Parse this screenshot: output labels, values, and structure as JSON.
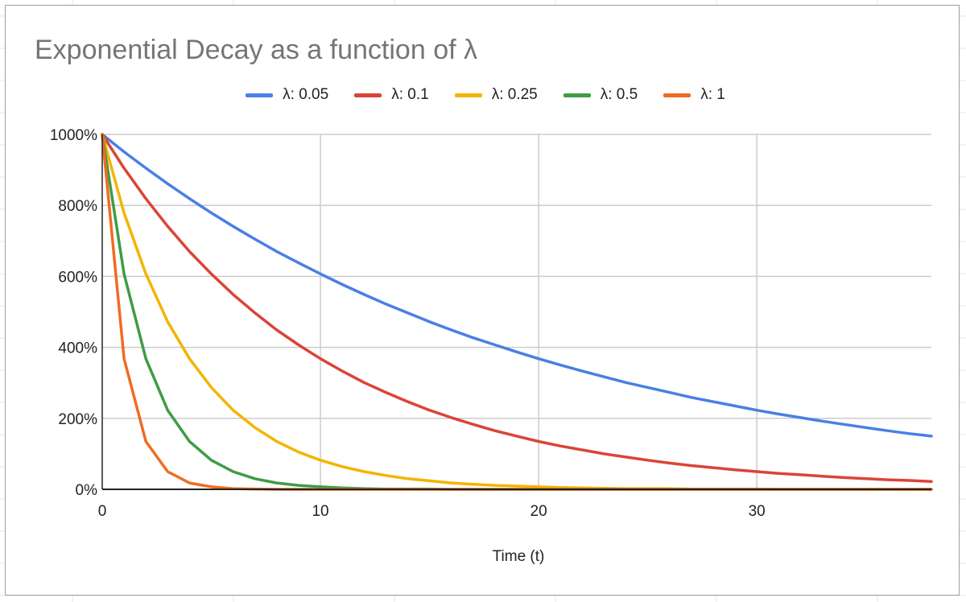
{
  "colors": {
    "gridline": "#cccccc",
    "axis": "#222222",
    "sheet_grid": "#e6e6e6",
    "title": "#757575"
  },
  "chart_data": {
    "type": "line",
    "title": "Exponential Decay as a function of λ",
    "xlabel": "Time (t)",
    "ylabel": "",
    "xlim": [
      0,
      38
    ],
    "ylim": [
      0,
      1000
    ],
    "x_ticks": [
      0,
      10,
      20,
      30
    ],
    "x_tick_labels": [
      "0",
      "10",
      "20",
      "30"
    ],
    "y_ticks": [
      0,
      200,
      400,
      600,
      800,
      1000
    ],
    "y_tick_labels": [
      "0%",
      "200%",
      "400%",
      "600%",
      "800%",
      "1000%"
    ],
    "legend_position": "top-center",
    "grid": true,
    "x": [
      0,
      1,
      2,
      3,
      4,
      5,
      6,
      7,
      8,
      9,
      10,
      11,
      12,
      13,
      14,
      15,
      16,
      17,
      18,
      19,
      20,
      21,
      22,
      23,
      24,
      25,
      26,
      27,
      28,
      29,
      30,
      31,
      32,
      33,
      34,
      35,
      36,
      37,
      38
    ],
    "series": [
      {
        "name": "λ: 0.05",
        "color": "#4a7fe5",
        "values": [
          1000,
          951,
          905,
          861,
          819,
          779,
          741,
          705,
          670,
          638,
          607,
          577,
          549,
          522,
          497,
          472,
          449,
          427,
          407,
          387,
          368,
          350,
          333,
          317,
          301,
          287,
          273,
          259,
          247,
          235,
          223,
          212,
          202,
          192,
          183,
          174,
          165,
          157,
          150
        ]
      },
      {
        "name": "λ: 0.1",
        "color": "#db4437",
        "values": [
          1000,
          905,
          819,
          741,
          670,
          607,
          549,
          497,
          449,
          407,
          368,
          333,
          301,
          273,
          247,
          223,
          202,
          183,
          165,
          150,
          135,
          122,
          111,
          100,
          91,
          82,
          74,
          67,
          61,
          55,
          50,
          45,
          41,
          37,
          33,
          30,
          27,
          25,
          22
        ]
      },
      {
        "name": "λ: 0.25",
        "color": "#f4b400",
        "values": [
          1000,
          779,
          607,
          472,
          368,
          287,
          223,
          174,
          135,
          105,
          82,
          64,
          50,
          39,
          30,
          24,
          18,
          14,
          11,
          9,
          7,
          5,
          4,
          3,
          2,
          2,
          2,
          1,
          1,
          1,
          1,
          0,
          0,
          0,
          0,
          0,
          0,
          0,
          0
        ]
      },
      {
        "name": "λ: 0.5",
        "color": "#3f9c46",
        "values": [
          1000,
          607,
          368,
          223,
          135,
          82,
          50,
          30,
          18,
          11,
          7,
          4,
          2,
          1,
          1,
          1,
          0,
          0,
          0,
          0,
          0,
          0,
          0,
          0,
          0,
          0,
          0,
          0,
          0,
          0,
          0,
          0,
          0,
          0,
          0,
          0,
          0,
          0,
          0
        ]
      },
      {
        "name": "λ: 1",
        "color": "#ef6c24",
        "values": [
          1000,
          368,
          135,
          50,
          18,
          7,
          2,
          1,
          0,
          0,
          0,
          0,
          0,
          0,
          0,
          0,
          0,
          0,
          0,
          0,
          0,
          0,
          0,
          0,
          0,
          0,
          0,
          0,
          0,
          0,
          0,
          0,
          0,
          0,
          0,
          0,
          0,
          0,
          0
        ]
      }
    ]
  }
}
